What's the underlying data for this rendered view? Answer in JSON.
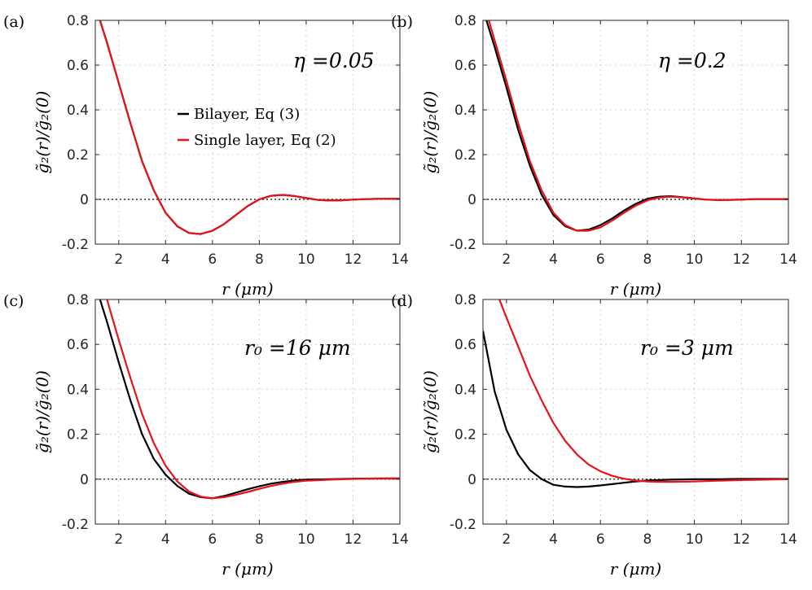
{
  "chart_data": [
    {
      "type": "line",
      "panel_label": "(a)",
      "annotation": "η =0.05",
      "xlabel": "r (μm)",
      "ylabel": "g̃₂(r)/g̃₂(0)",
      "xlim": [
        1,
        14
      ],
      "ylim": [
        -0.2,
        0.8
      ],
      "xticks": [
        "2",
        "4",
        "6",
        "8",
        "10",
        "12",
        "14"
      ],
      "yticks": [
        "0.8",
        "0.6",
        "0.4",
        "0.2",
        "0",
        "-0.2"
      ],
      "grid": true,
      "legend": {
        "placement": "center",
        "entries": [
          "Bilayer, Eq (3)",
          "Single layer, Eq (2)"
        ]
      },
      "series": [
        {
          "name": "Bilayer, Eq (3)",
          "color": "#000000",
          "x": [
            1.2,
            1.5,
            2,
            2.5,
            3,
            3.5,
            4,
            4.5,
            5,
            5.5,
            6,
            6.5,
            7,
            7.5,
            8,
            8.5,
            9,
            9.5,
            10,
            10.5,
            11,
            11.5,
            12,
            12.5,
            13,
            13.5,
            14
          ],
          "y": [
            0.8,
            0.7,
            0.52,
            0.34,
            0.17,
            0.04,
            -0.06,
            -0.12,
            -0.15,
            -0.155,
            -0.14,
            -0.11,
            -0.07,
            -0.03,
            0.0,
            0.016,
            0.02,
            0.015,
            0.006,
            -0.002,
            -0.005,
            -0.004,
            -0.001,
            0.001,
            0.002,
            0.002,
            0.002
          ]
        },
        {
          "name": "Single layer, Eq (2)",
          "color": "#e8121a",
          "x": [
            1.2,
            1.5,
            2,
            2.5,
            3,
            3.5,
            4,
            4.5,
            5,
            5.5,
            6,
            6.5,
            7,
            7.5,
            8,
            8.5,
            9,
            9.5,
            10,
            10.5,
            11,
            11.5,
            12,
            12.5,
            13,
            13.5,
            14
          ],
          "y": [
            0.8,
            0.7,
            0.52,
            0.34,
            0.17,
            0.04,
            -0.06,
            -0.12,
            -0.15,
            -0.155,
            -0.14,
            -0.11,
            -0.07,
            -0.03,
            0.0,
            0.016,
            0.02,
            0.015,
            0.006,
            -0.002,
            -0.005,
            -0.004,
            -0.001,
            0.001,
            0.002,
            0.002,
            0.002
          ]
        }
      ]
    },
    {
      "type": "line",
      "panel_label": "(b)",
      "annotation": "η =0.2",
      "xlabel": "r (μm)",
      "ylabel": "g̃₂(r)/g̃₂(0)",
      "xlim": [
        1,
        14
      ],
      "ylim": [
        -0.2,
        0.8
      ],
      "xticks": [
        "2",
        "4",
        "6",
        "8",
        "10",
        "12",
        "14"
      ],
      "yticks": [
        "0.8",
        "0.6",
        "0.4",
        "0.2",
        "0",
        "-0.2"
      ],
      "grid": true,
      "series": [
        {
          "name": "Bilayer, Eq (3)",
          "color": "#000000",
          "x": [
            1.15,
            1.5,
            2,
            2.5,
            3,
            3.5,
            4,
            4.5,
            5,
            5.5,
            6,
            6.5,
            7,
            7.5,
            8,
            8.5,
            9,
            9.5,
            10,
            10.5,
            11,
            11.5,
            12,
            12.5,
            13,
            13.5,
            14
          ],
          "y": [
            0.8,
            0.68,
            0.5,
            0.31,
            0.15,
            0.02,
            -0.07,
            -0.12,
            -0.14,
            -0.135,
            -0.115,
            -0.085,
            -0.05,
            -0.02,
            0.003,
            0.012,
            0.014,
            0.01,
            0.004,
            -0.001,
            -0.003,
            -0.002,
            -0.001,
            0.001,
            0.001,
            0.001,
            0.001
          ]
        },
        {
          "name": "Single layer, Eq (2)",
          "color": "#e8121a",
          "x": [
            1.25,
            1.5,
            2,
            2.5,
            3,
            3.5,
            4,
            4.5,
            5,
            5.5,
            6,
            6.5,
            7,
            7.5,
            8,
            8.5,
            9,
            9.5,
            10,
            10.5,
            11,
            11.5,
            12,
            12.5,
            13,
            13.5,
            14
          ],
          "y": [
            0.8,
            0.71,
            0.53,
            0.34,
            0.17,
            0.04,
            -0.06,
            -0.115,
            -0.14,
            -0.14,
            -0.125,
            -0.095,
            -0.06,
            -0.028,
            -0.004,
            0.008,
            0.012,
            0.009,
            0.004,
            -0.001,
            -0.003,
            -0.002,
            -0.001,
            0.001,
            0.001,
            0.001,
            0.001
          ]
        }
      ]
    },
    {
      "type": "line",
      "panel_label": "(c)",
      "annotation": "r₀ =16 μm",
      "xlabel": "r (μm)",
      "ylabel": "g̃₂(r)/g̃₂(0)",
      "xlim": [
        1,
        14
      ],
      "ylim": [
        -0.2,
        0.8
      ],
      "xticks": [
        "2",
        "4",
        "6",
        "8",
        "10",
        "12",
        "14"
      ],
      "yticks": [
        "0.8",
        "0.6",
        "0.4",
        "0.2",
        "0",
        "-0.2"
      ],
      "grid": true,
      "series": [
        {
          "name": "Bilayer, Eq (3)",
          "color": "#000000",
          "x": [
            1.2,
            1.5,
            2,
            2.5,
            3,
            3.5,
            4,
            4.5,
            5,
            5.5,
            6,
            6.5,
            7,
            7.5,
            8,
            8.5,
            9,
            9.5,
            10,
            11,
            12,
            13,
            14
          ],
          "y": [
            0.8,
            0.7,
            0.52,
            0.35,
            0.2,
            0.09,
            0.02,
            -0.03,
            -0.065,
            -0.08,
            -0.085,
            -0.075,
            -0.06,
            -0.045,
            -0.032,
            -0.02,
            -0.012,
            -0.006,
            -0.002,
            0.0,
            0.002,
            0.003,
            0.003
          ]
        },
        {
          "name": "Single layer, Eq (2)",
          "color": "#e8121a",
          "x": [
            1.5,
            2,
            2.5,
            3,
            3.5,
            4,
            4.5,
            5,
            5.5,
            6,
            6.5,
            7,
            7.5,
            8,
            8.5,
            9,
            9.5,
            10,
            11,
            12,
            13,
            14
          ],
          "y": [
            0.8,
            0.62,
            0.45,
            0.29,
            0.16,
            0.06,
            -0.01,
            -0.055,
            -0.078,
            -0.085,
            -0.08,
            -0.07,
            -0.057,
            -0.043,
            -0.03,
            -0.02,
            -0.012,
            -0.007,
            -0.002,
            0.001,
            0.003,
            0.004
          ]
        }
      ]
    },
    {
      "type": "line",
      "panel_label": "(d)",
      "annotation": "r₀ =3 μm",
      "xlabel": "r (μm)",
      "ylabel": "g̃₂(r)/g̃₂(0)",
      "xlim": [
        1,
        14
      ],
      "ylim": [
        -0.2,
        0.8
      ],
      "xticks": [
        "2",
        "4",
        "6",
        "8",
        "10",
        "12",
        "14"
      ],
      "yticks": [
        "0.8",
        "0.6",
        "0.4",
        "0.2",
        "0",
        "-0.2"
      ],
      "grid": true,
      "series": [
        {
          "name": "Bilayer, Eq (3)",
          "color": "#000000",
          "x": [
            1,
            1.5,
            2,
            2.5,
            3,
            3.5,
            4,
            4.5,
            5,
            5.5,
            6,
            6.5,
            7,
            7.5,
            8,
            9,
            10,
            11,
            12,
            13,
            14
          ],
          "y": [
            0.66,
            0.39,
            0.22,
            0.11,
            0.04,
            0.0,
            -0.025,
            -0.033,
            -0.035,
            -0.033,
            -0.028,
            -0.022,
            -0.016,
            -0.01,
            -0.006,
            -0.002,
            0.0,
            0.0,
            0.001,
            0.001,
            0.001
          ]
        },
        {
          "name": "Single layer, Eq (2)",
          "color": "#e8121a",
          "x": [
            1.7,
            2,
            2.5,
            3,
            3.5,
            4,
            4.5,
            5,
            5.5,
            6,
            6.5,
            7,
            7.5,
            8,
            8.5,
            9,
            10,
            11,
            12,
            13,
            14
          ],
          "y": [
            0.8,
            0.72,
            0.59,
            0.46,
            0.35,
            0.25,
            0.17,
            0.11,
            0.065,
            0.035,
            0.015,
            0.002,
            -0.006,
            -0.01,
            -0.012,
            -0.012,
            -0.01,
            -0.007,
            -0.004,
            -0.002,
            0.0
          ]
        }
      ]
    }
  ]
}
